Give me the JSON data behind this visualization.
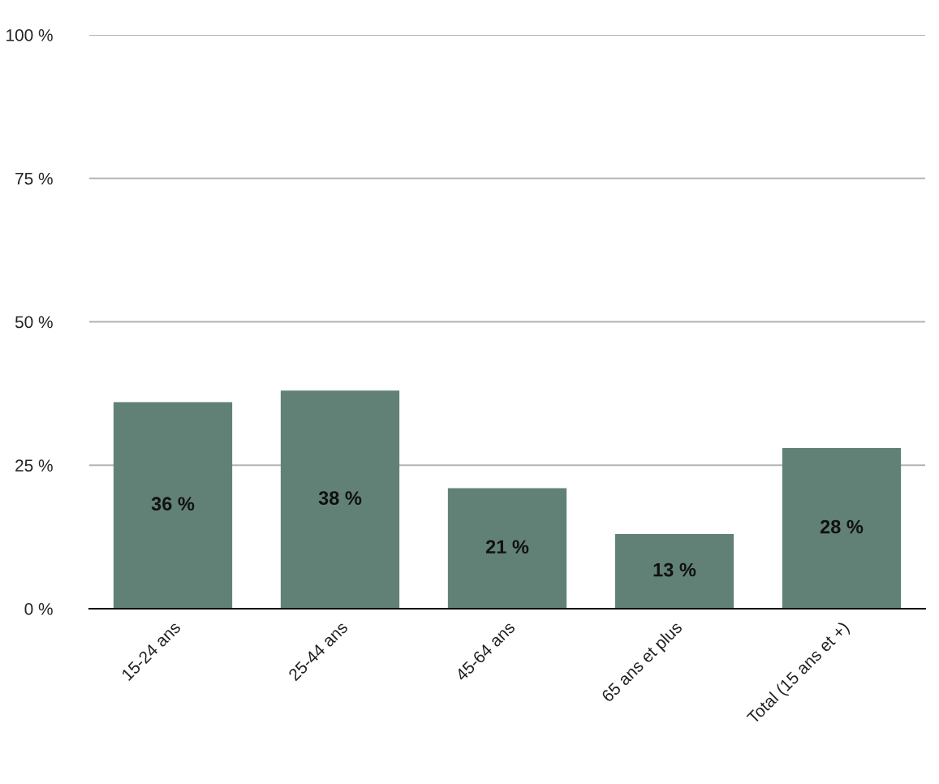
{
  "chart_data": {
    "type": "bar",
    "categories": [
      "15-24 ans",
      "25-44 ans",
      "45-64 ans",
      "65 ans et plus",
      "Total (15 ans et +)"
    ],
    "values": [
      36,
      38,
      21,
      13,
      28
    ],
    "value_labels": [
      "36 %",
      "38 %",
      "21 %",
      "13 %",
      "28 %"
    ],
    "color": "#618177",
    "ylim": [
      0,
      100
    ],
    "yticks": [
      {
        "value": 0,
        "label": "0 %"
      },
      {
        "value": 25,
        "label": "25 %"
      },
      {
        "value": 50,
        "label": "50 %"
      },
      {
        "value": 75,
        "label": "75 %"
      },
      {
        "value": 100,
        "label": "100 %"
      }
    ],
    "grid": "y",
    "legend": false
  }
}
